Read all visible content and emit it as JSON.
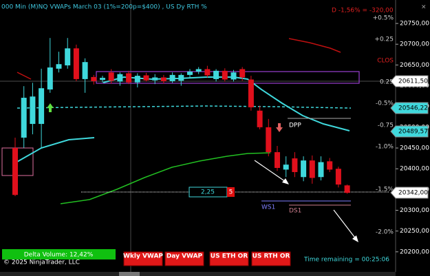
{
  "chart_data": {
    "type": "candlestick",
    "title": "000 Min (M)NQ VWAPs March 03 (1%=200p=$400) , US Dy RTH %",
    "open": [
      20450,
      20475,
      20508,
      20508,
      20591,
      20641,
      20649,
      20690,
      20616,
      20621,
      20614,
      20632,
      20610,
      20630,
      20608,
      20625,
      20613,
      20620,
      20611,
      20612,
      20626,
      20634,
      20640,
      20616,
      20636,
      20615,
      20640,
      20615,
      20540,
      20500,
      20440,
      20398,
      20425,
      20380,
      20420,
      20380,
      20418,
      20400,
      20360
    ],
    "high": [
      20475,
      20599,
      20607,
      20641,
      20715,
      20682,
      20715,
      20699,
      20666,
      20626,
      20624,
      20640,
      20632,
      20636,
      20630,
      20631,
      20628,
      20626,
      20632,
      20630,
      20640,
      20645,
      20648,
      20640,
      20642,
      20638,
      20645,
      20624,
      20552,
      20520,
      20455,
      20430,
      20440,
      20430,
      20432,
      20430,
      20426,
      20405,
      20362
    ],
    "low": [
      20334,
      20450,
      20483,
      20450,
      20583,
      20632,
      20641,
      20611,
      20583,
      20603,
      20608,
      20605,
      20600,
      20604,
      20596,
      20610,
      20604,
      20605,
      20607,
      20600,
      20620,
      20628,
      20620,
      20610,
      20610,
      20610,
      20612,
      20540,
      20495,
      20430,
      20395,
      20380,
      20380,
      20370,
      20364,
      20372,
      20392,
      20355,
      20340
    ],
    "close": [
      20337,
      20571,
      20574,
      20594,
      20644,
      20652,
      20690,
      20616,
      20657,
      20611,
      20619,
      20612,
      20628,
      20608,
      20624,
      20613,
      20620,
      20611,
      20626,
      20626,
      20634,
      20640,
      20625,
      20636,
      20615,
      20632,
      20620,
      20548,
      20500,
      20440,
      20402,
      20410,
      20392,
      20420,
      20378,
      20416,
      20398,
      20362,
      20342
    ],
    "up_color": "#3fd8dc",
    "down_color": "#e0101c",
    "ylim": [
      20150,
      20775
    ],
    "yticks": [
      {
        "value": 20200,
        "label": "20200,00"
      },
      {
        "value": 20250,
        "label": "20250,00"
      },
      {
        "value": 20300,
        "label": "20300,00"
      },
      {
        "value": 20350,
        "label": "20350,00"
      },
      {
        "value": 20400,
        "label": "20400,00"
      },
      {
        "value": 20450,
        "label": "20450,00"
      },
      {
        "value": 20500,
        "label": "20500,00"
      },
      {
        "value": 20550,
        "label": "20550,00"
      },
      {
        "value": 20600,
        "label": "20600,00"
      },
      {
        "value": 20650,
        "label": "20650,00"
      },
      {
        "value": 20700,
        "label": "20700,00"
      },
      {
        "value": 20750,
        "label": "20750,00"
      }
    ]
  },
  "ui": {
    "daily_change": "D -1,56% = -320,00",
    "percent_labels": [
      "+0.5%",
      "+0.25",
      "CLOS",
      "0.25",
      "-0.5%",
      "-0.75",
      "-1.0%",
      "-1.5%",
      "-2.0%"
    ],
    "price_flags": [
      "20611,50",
      "20546,22",
      "20489,57",
      "20342,00"
    ],
    "levels": [
      "DPP",
      "WS1",
      "DS1"
    ],
    "order_qty": "2,25",
    "order_count": "5",
    "delta_volume": "Delta Volume: 12,42%",
    "copyright": "© 2025 NinjaTrader, LLC",
    "buttons": [
      "Wkly VWAP",
      "Day VWAP",
      "US ETH OR",
      "US RTH OR"
    ],
    "time_remaining": "Time remaining = 00:25:06"
  }
}
